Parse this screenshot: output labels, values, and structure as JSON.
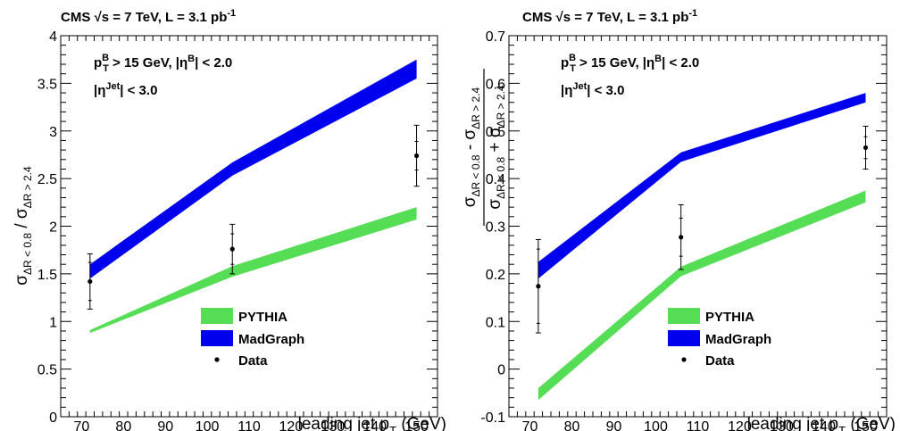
{
  "chart_data": [
    {
      "type": "area",
      "header": {
        "cms": "CMS",
        "energy": "√s = 7 TeV, L = 3.1 pb",
        "energy_sup": "-1"
      },
      "cuts": {
        "line1": {
          "p": "p",
          "sub": "T",
          "sup": "B",
          "rest": " > 15 GeV, |η",
          "sup2": "B",
          "rest2": "| < 2.0"
        },
        "line2": {
          "p": "|η",
          "sup": "Jet",
          "rest": "| < 3.0"
        }
      },
      "xlabel": "leading jet p",
      "xlabel_sub": "T",
      "xlabel_unit": " (GeV)",
      "ylabel": "σ_ΔR<0.8 / σ_ΔR>2.4",
      "xlim": [
        65,
        155
      ],
      "ylim": [
        0,
        4
      ],
      "xticks": [
        "70",
        "80",
        "90",
        "100",
        "110",
        "120",
        "130",
        "140",
        "150"
      ],
      "yticks": [
        "0",
        "0.5",
        "1",
        "1.5",
        "2",
        "2.5",
        "3",
        "3.5",
        "4"
      ],
      "series": [
        {
          "name": "PYTHIA",
          "color": "#55dd55",
          "x": [
            72,
            106,
            150
          ],
          "low": [
            0.88,
            1.47,
            2.07
          ],
          "high": [
            0.91,
            1.58,
            2.2
          ]
        },
        {
          "name": "MadGraph",
          "color": "#0000ee",
          "x": [
            72,
            106,
            150
          ],
          "low": [
            1.45,
            2.53,
            3.55
          ],
          "high": [
            1.6,
            2.67,
            3.75
          ]
        }
      ],
      "data_points": {
        "name": "Data",
        "x": [
          72,
          106,
          150
        ],
        "y": [
          1.42,
          1.76,
          2.74
        ],
        "stat": [
          0.2,
          0.16,
          0.15
        ],
        "total": [
          0.29,
          0.26,
          0.32
        ]
      },
      "legend": {
        "placement": "bottom-right"
      }
    },
    {
      "type": "area",
      "header": {
        "cms": "CMS",
        "energy": "√s = 7 TeV, L = 3.1 pb",
        "energy_sup": "-1"
      },
      "cuts": {
        "line1": {
          "p": "p",
          "sub": "T",
          "sup": "B",
          "rest": " > 15 GeV, |η",
          "sup2": "B",
          "rest2": "| < 2.0"
        },
        "line2": {
          "p": "|η",
          "sup": "Jet",
          "rest": "| < 3.0"
        }
      },
      "xlabel": "leading jet p",
      "xlabel_sub": "T",
      "xlabel_unit": " (GeV)",
      "ylabel_num": "σ_ΔR<0.8 - σ_ΔR>2.4",
      "ylabel_den": "σ_ΔR<0.8 + σ_ΔR>2.4",
      "xlim": [
        65,
        155
      ],
      "ylim": [
        -0.1,
        0.7
      ],
      "xticks": [
        "70",
        "80",
        "90",
        "100",
        "110",
        "120",
        "130",
        "140",
        "150"
      ],
      "yticks": [
        "-0.1",
        "0",
        "0.1",
        "0.2",
        "0.3",
        "0.4",
        "0.5",
        "0.6",
        "0.7"
      ],
      "series": [
        {
          "name": "PYTHIA",
          "color": "#55dd55",
          "x": [
            72,
            106,
            150
          ],
          "low": [
            -0.065,
            0.195,
            0.35
          ],
          "high": [
            -0.04,
            0.215,
            0.375
          ]
        },
        {
          "name": "MadGraph",
          "color": "#0000ee",
          "x": [
            72,
            106,
            150
          ],
          "low": [
            0.19,
            0.435,
            0.56
          ],
          "high": [
            0.225,
            0.455,
            0.58
          ]
        }
      ],
      "data_points": {
        "name": "Data",
        "x": [
          72,
          106,
          150
        ],
        "y": [
          0.174,
          0.277,
          0.465
        ],
        "stat": [
          0.078,
          0.04,
          0.023
        ],
        "total": [
          0.098,
          0.068,
          0.045
        ]
      },
      "legend": {
        "placement": "bottom-right"
      }
    }
  ]
}
